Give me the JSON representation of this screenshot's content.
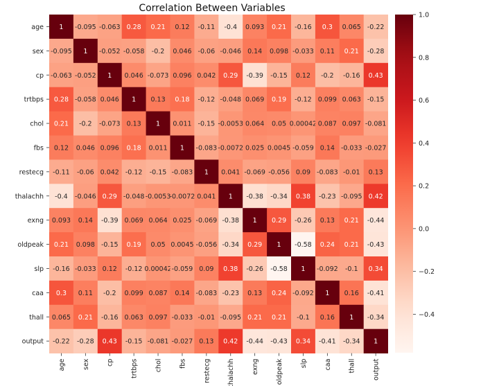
{
  "chart_data": {
    "type": "heatmap",
    "title": "Correlation Between Variables",
    "variables": [
      "age",
      "sex",
      "cp",
      "trtbps",
      "chol",
      "fbs",
      "restecg",
      "thalachh",
      "exng",
      "oldpeak",
      "slp",
      "caa",
      "thall",
      "output"
    ],
    "values": [
      [
        1,
        -0.095,
        -0.063,
        0.28,
        0.21,
        0.12,
        -0.11,
        -0.4,
        0.093,
        0.21,
        -0.16,
        0.3,
        0.065,
        -0.22
      ],
      [
        -0.095,
        1,
        -0.052,
        -0.058,
        -0.2,
        0.046,
        -0.06,
        -0.046,
        0.14,
        0.098,
        -0.033,
        0.11,
        0.21,
        -0.28
      ],
      [
        -0.063,
        -0.052,
        1,
        0.046,
        -0.073,
        0.096,
        0.042,
        0.29,
        -0.39,
        -0.15,
        0.12,
        -0.2,
        -0.16,
        0.43
      ],
      [
        0.28,
        -0.058,
        0.046,
        1,
        0.13,
        0.18,
        -0.12,
        -0.048,
        0.069,
        0.19,
        -0.12,
        0.099,
        0.063,
        -0.15
      ],
      [
        0.21,
        -0.2,
        -0.073,
        0.13,
        1,
        0.011,
        -0.15,
        -0.0053,
        0.064,
        0.05,
        0.00042,
        0.087,
        0.097,
        -0.081
      ],
      [
        0.12,
        0.046,
        0.096,
        0.18,
        0.011,
        1,
        -0.083,
        -0.0072,
        0.025,
        0.0045,
        -0.059,
        0.14,
        -0.033,
        -0.027
      ],
      [
        -0.11,
        -0.06,
        0.042,
        -0.12,
        -0.15,
        -0.083,
        1,
        0.041,
        -0.069,
        -0.056,
        0.09,
        -0.083,
        -0.01,
        0.13
      ],
      [
        -0.4,
        -0.046,
        0.29,
        -0.048,
        -0.0053,
        -0.0072,
        0.041,
        1,
        -0.38,
        -0.34,
        0.38,
        -0.23,
        -0.095,
        0.42
      ],
      [
        0.093,
        0.14,
        -0.39,
        0.069,
        0.064,
        0.025,
        -0.069,
        -0.38,
        1,
        0.29,
        -0.26,
        0.13,
        0.21,
        -0.44
      ],
      [
        0.21,
        0.098,
        -0.15,
        0.19,
        0.05,
        0.0045,
        -0.056,
        -0.34,
        0.29,
        1,
        -0.58,
        0.24,
        0.21,
        -0.43
      ],
      [
        -0.16,
        -0.033,
        0.12,
        -0.12,
        0.00042,
        -0.059,
        0.09,
        0.38,
        -0.26,
        -0.58,
        1,
        -0.092,
        -0.1,
        0.34
      ],
      [
        0.3,
        0.11,
        -0.2,
        0.099,
        0.087,
        0.14,
        -0.083,
        -0.23,
        0.13,
        0.24,
        -0.092,
        1,
        0.16,
        -0.41
      ],
      [
        0.065,
        0.21,
        -0.16,
        0.063,
        0.097,
        -0.033,
        -0.01,
        -0.095,
        0.21,
        0.21,
        -0.1,
        0.16,
        1,
        -0.34
      ],
      [
        -0.22,
        -0.28,
        0.43,
        -0.15,
        -0.081,
        -0.027,
        0.13,
        0.42,
        -0.44,
        -0.43,
        0.34,
        -0.41,
        -0.34,
        1
      ]
    ],
    "labels": [
      [
        "1",
        "-0.095",
        "-0.063",
        "0.28",
        "0.21",
        "0.12",
        "-0.11",
        "-0.4",
        "0.093",
        "0.21",
        "-0.16",
        "0.3",
        "0.065",
        "-0.22"
      ],
      [
        "-0.095",
        "1",
        "-0.052",
        "-0.058",
        "-0.2",
        "0.046",
        "-0.06",
        "-0.046",
        "0.14",
        "0.098",
        "-0.033",
        "0.11",
        "0.21",
        "-0.28"
      ],
      [
        "-0.063",
        "-0.052",
        "1",
        "0.046",
        "-0.073",
        "0.096",
        "0.042",
        "0.29",
        "-0.39",
        "-0.15",
        "0.12",
        "-0.2",
        "-0.16",
        "0.43"
      ],
      [
        "0.28",
        "-0.058",
        "0.046",
        "1",
        "0.13",
        "0.18",
        "-0.12",
        "-0.048",
        "0.069",
        "0.19",
        "-0.12",
        "0.099",
        "0.063",
        "-0.15"
      ],
      [
        "0.21",
        "-0.2",
        "-0.073",
        "0.13",
        "1",
        "0.011",
        "-0.15",
        "-0.0053",
        "0.064",
        "0.05",
        "0.00042",
        "0.087",
        "0.097",
        "-0.081"
      ],
      [
        "0.12",
        "0.046",
        "0.096",
        "0.18",
        "0.011",
        "1",
        "-0.083",
        "-0.0072",
        "0.025",
        "0.0045",
        "-0.059",
        "0.14",
        "-0.033",
        "-0.027"
      ],
      [
        "-0.11",
        "-0.06",
        "0.042",
        "-0.12",
        "-0.15",
        "-0.083",
        "1",
        "0.041",
        "-0.069",
        "-0.056",
        "0.09",
        "-0.083",
        "-0.01",
        "0.13"
      ],
      [
        "-0.4",
        "-0.046",
        "0.29",
        "-0.048",
        "-0.0053",
        "-0.0072",
        "0.041",
        "1",
        "-0.38",
        "-0.34",
        "0.38",
        "-0.23",
        "-0.095",
        "0.42"
      ],
      [
        "0.093",
        "0.14",
        "-0.39",
        "0.069",
        "0.064",
        "0.025",
        "-0.069",
        "-0.38",
        "1",
        "0.29",
        "-0.26",
        "0.13",
        "0.21",
        "-0.44"
      ],
      [
        "0.21",
        "0.098",
        "-0.15",
        "0.19",
        "0.05",
        "0.0045",
        "-0.056",
        "-0.34",
        "0.29",
        "1",
        "-0.58",
        "0.24",
        "0.21",
        "-0.43"
      ],
      [
        "-0.16",
        "-0.033",
        "0.12",
        "-0.12",
        "0.00042",
        "-0.059",
        "0.09",
        "0.38",
        "-0.26",
        "-0.58",
        "1",
        "-0.092",
        "-0.1",
        "0.34"
      ],
      [
        "0.3",
        "0.11",
        "-0.2",
        "0.099",
        "0.087",
        "0.14",
        "-0.083",
        "-0.23",
        "0.13",
        "0.24",
        "-0.092",
        "1",
        "0.16",
        "-0.41"
      ],
      [
        "0.065",
        "0.21",
        "-0.16",
        "0.063",
        "0.097",
        "-0.033",
        "-0.01",
        "-0.095",
        "0.21",
        "0.21",
        "-0.1",
        "0.16",
        "1",
        "-0.34"
      ],
      [
        "-0.22",
        "-0.28",
        "0.43",
        "-0.15",
        "-0.081",
        "-0.027",
        "0.13",
        "0.42",
        "-0.44",
        "-0.43",
        "0.34",
        "-0.41",
        "-0.34",
        "1"
      ]
    ],
    "colormap": "Reds",
    "value_range": [
      -0.58,
      1.0
    ],
    "colorbar": {
      "ticks": [
        1.0,
        0.8,
        0.6,
        0.4,
        0.2,
        0.0,
        -0.2,
        -0.4
      ],
      "tick_labels": [
        "1.0",
        "0.8",
        "0.6",
        "0.4",
        "0.2",
        "0.0",
        "−0.2",
        "−0.4"
      ]
    },
    "annotations": "correlation value printed in each cell"
  }
}
